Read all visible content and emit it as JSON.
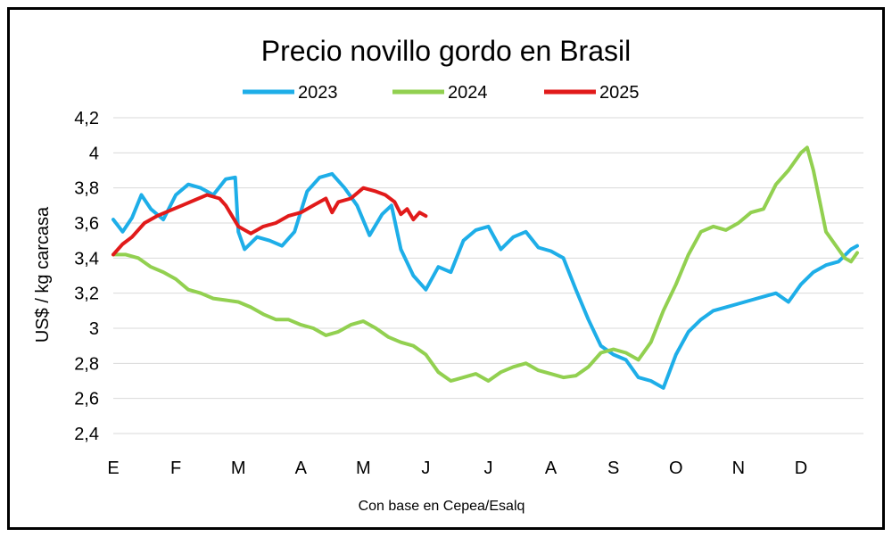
{
  "chart_data": {
    "type": "line",
    "title": "Precio novillo gordo en Brasil",
    "ylabel": "US$ / kg carcasa",
    "caption": "Con base en Cepea/Esalq",
    "ylim": [
      2.4,
      4.2
    ],
    "yticks": [
      "2,4",
      "2,6",
      "2,8",
      "3",
      "3,2",
      "3,4",
      "3,6",
      "3,8",
      "4",
      "4,2"
    ],
    "ytick_values": [
      2.4,
      2.6,
      2.8,
      3.0,
      3.2,
      3.4,
      3.6,
      3.8,
      4.0,
      4.2
    ],
    "months": [
      "E",
      "F",
      "M",
      "A",
      "M",
      "J",
      "J",
      "A",
      "S",
      "O",
      "N",
      "D"
    ],
    "xlim": [
      0,
      12
    ],
    "grid": true,
    "legend_position": "top",
    "series": [
      {
        "name": "2023",
        "color": "#1eaee8",
        "x": [
          0.0,
          0.15,
          0.3,
          0.45,
          0.6,
          0.8,
          1.0,
          1.2,
          1.4,
          1.6,
          1.8,
          1.95,
          2.0,
          2.1,
          2.3,
          2.5,
          2.7,
          2.9,
          3.1,
          3.3,
          3.5,
          3.7,
          3.9,
          4.1,
          4.3,
          4.45,
          4.6,
          4.8,
          5.0,
          5.2,
          5.4,
          5.6,
          5.8,
          6.0,
          6.2,
          6.4,
          6.6,
          6.8,
          7.0,
          7.2,
          7.4,
          7.6,
          7.8,
          8.0,
          8.2,
          8.4,
          8.6,
          8.8,
          9.0,
          9.2,
          9.4,
          9.6,
          9.8,
          10.0,
          10.2,
          10.4,
          10.6,
          10.8,
          11.0,
          11.2,
          11.4,
          11.6,
          11.8,
          11.9
        ],
        "values": [
          3.62,
          3.55,
          3.63,
          3.76,
          3.68,
          3.62,
          3.76,
          3.82,
          3.8,
          3.76,
          3.85,
          3.86,
          3.55,
          3.45,
          3.52,
          3.5,
          3.47,
          3.55,
          3.78,
          3.86,
          3.88,
          3.8,
          3.7,
          3.53,
          3.65,
          3.7,
          3.45,
          3.3,
          3.22,
          3.35,
          3.32,
          3.5,
          3.56,
          3.58,
          3.45,
          3.52,
          3.55,
          3.46,
          3.44,
          3.4,
          3.22,
          3.05,
          2.9,
          2.85,
          2.82,
          2.72,
          2.7,
          2.66,
          2.85,
          2.98,
          3.05,
          3.1,
          3.12,
          3.14,
          3.16,
          3.18,
          3.2,
          3.15,
          3.25,
          3.32,
          3.36,
          3.38,
          3.45,
          3.47
        ]
      },
      {
        "name": "2024",
        "color": "#92d050",
        "x": [
          0.0,
          0.2,
          0.4,
          0.6,
          0.8,
          1.0,
          1.2,
          1.4,
          1.6,
          1.8,
          2.0,
          2.2,
          2.4,
          2.6,
          2.8,
          3.0,
          3.2,
          3.4,
          3.6,
          3.8,
          4.0,
          4.2,
          4.4,
          4.6,
          4.8,
          5.0,
          5.2,
          5.4,
          5.6,
          5.8,
          6.0,
          6.2,
          6.4,
          6.6,
          6.8,
          7.0,
          7.2,
          7.4,
          7.6,
          7.8,
          8.0,
          8.2,
          8.4,
          8.6,
          8.8,
          9.0,
          9.2,
          9.4,
          9.6,
          9.8,
          10.0,
          10.2,
          10.4,
          10.6,
          10.8,
          11.0,
          11.1,
          11.2,
          11.4,
          11.6,
          11.7,
          11.8,
          11.9
        ],
        "values": [
          3.42,
          3.42,
          3.4,
          3.35,
          3.32,
          3.28,
          3.22,
          3.2,
          3.17,
          3.16,
          3.15,
          3.12,
          3.08,
          3.05,
          3.05,
          3.02,
          3.0,
          2.96,
          2.98,
          3.02,
          3.04,
          3.0,
          2.95,
          2.92,
          2.9,
          2.85,
          2.75,
          2.7,
          2.72,
          2.74,
          2.7,
          2.75,
          2.78,
          2.8,
          2.76,
          2.74,
          2.72,
          2.73,
          2.78,
          2.86,
          2.88,
          2.86,
          2.82,
          2.92,
          3.1,
          3.25,
          3.42,
          3.55,
          3.58,
          3.56,
          3.6,
          3.66,
          3.68,
          3.82,
          3.9,
          4.0,
          4.03,
          3.9,
          3.55,
          3.45,
          3.4,
          3.38,
          3.43
        ]
      },
      {
        "name": "2025",
        "color": "#e11a1a",
        "x": [
          0.0,
          0.15,
          0.3,
          0.5,
          0.7,
          0.9,
          1.1,
          1.3,
          1.5,
          1.7,
          1.8,
          2.0,
          2.2,
          2.4,
          2.6,
          2.8,
          3.0,
          3.2,
          3.4,
          3.5,
          3.6,
          3.8,
          4.0,
          4.2,
          4.35,
          4.5,
          4.6,
          4.7,
          4.8,
          4.9,
          5.0
        ],
        "values": [
          3.42,
          3.48,
          3.52,
          3.6,
          3.64,
          3.67,
          3.7,
          3.73,
          3.76,
          3.74,
          3.7,
          3.58,
          3.54,
          3.58,
          3.6,
          3.64,
          3.66,
          3.7,
          3.74,
          3.66,
          3.72,
          3.74,
          3.8,
          3.78,
          3.76,
          3.72,
          3.65,
          3.68,
          3.62,
          3.66,
          3.64
        ]
      }
    ]
  }
}
